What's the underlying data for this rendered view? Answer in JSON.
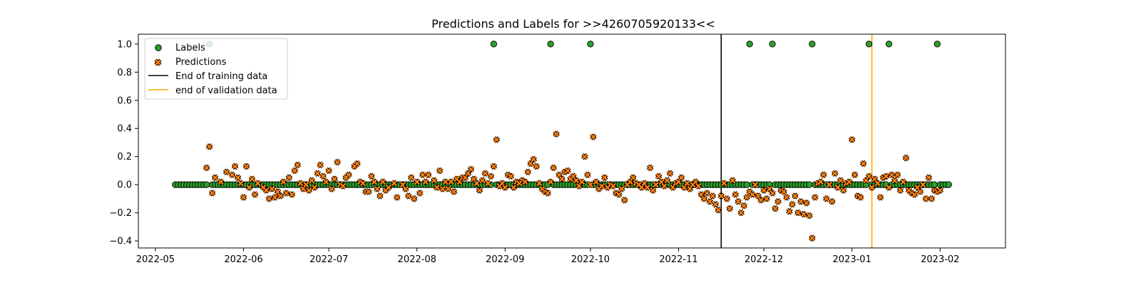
{
  "chart_data": {
    "type": "scatter",
    "title": "Predictions and Labels for >>4260705920133<<",
    "xlabel": "",
    "ylabel": "",
    "x_axis": "date",
    "xlim": [
      "2022-04-25",
      "2023-02-24"
    ],
    "ylim": [
      -0.45,
      1.07
    ],
    "yticks": [
      -0.4,
      -0.2,
      0.0,
      0.2,
      0.4,
      0.6,
      0.8,
      1.0
    ],
    "ytick_labels": [
      "−0.4",
      "−0.2",
      "0.0",
      "0.2",
      "0.4",
      "0.6",
      "0.8",
      "1.0"
    ],
    "xticks": [
      "2022-05-01",
      "2022-06-01",
      "2022-07-01",
      "2022-08-01",
      "2022-09-01",
      "2022-10-01",
      "2022-11-01",
      "2022-12-01",
      "2023-01-01",
      "2023-02-01"
    ],
    "xtick_labels": [
      "2022-05",
      "2022-06",
      "2022-07",
      "2022-08",
      "2022-09",
      "2022-10",
      "2022-11",
      "2022-12",
      "2023-01",
      "2023-02"
    ],
    "grid": false,
    "legend_position": "upper-left",
    "legend": [
      {
        "label": "Labels",
        "kind": "circle-marker",
        "color": "#2ca02c"
      },
      {
        "label": "Predictions",
        "kind": "x-marker",
        "color": "#ff7f0e"
      },
      {
        "label": "End of training data",
        "kind": "line",
        "color": "#000000"
      },
      {
        "label": "end of validation data",
        "kind": "line",
        "color": "#ffa500"
      }
    ],
    "colors": {
      "labels": "#2ca02c",
      "predictions": "#ff7f0e",
      "training_line": "#000000",
      "validation_line": "#ffa500"
    },
    "label_range": {
      "start": "2022-05-08",
      "end": "2023-02-04"
    },
    "label_positive_dates": [
      "2022-05-20",
      "2022-08-28",
      "2022-09-17",
      "2022-10-01",
      "2022-11-26",
      "2022-12-04",
      "2022-12-18",
      "2023-01-07",
      "2023-01-14",
      "2023-01-31"
    ],
    "vlines": [
      {
        "name": "End of training data",
        "x": "2022-11-16",
        "color": "#000000"
      },
      {
        "name": "end of validation data",
        "x": "2023-01-08",
        "color": "#ffa500"
      }
    ],
    "series": [
      {
        "name": "Labels",
        "kind": "scatter-circle"
      },
      {
        "name": "Predictions",
        "kind": "scatter-x",
        "points": [
          [
            "2022-05-19",
            0.12
          ],
          [
            "2022-05-20",
            0.27
          ],
          [
            "2022-05-21",
            -0.06
          ],
          [
            "2022-05-22",
            0.05
          ],
          [
            "2022-05-24",
            0.02
          ],
          [
            "2022-05-26",
            0.09
          ],
          [
            "2022-05-28",
            0.07
          ],
          [
            "2022-05-29",
            0.13
          ],
          [
            "2022-05-30",
            0.05
          ],
          [
            "2022-05-31",
            0.01
          ],
          [
            "2022-06-01",
            -0.09
          ],
          [
            "2022-06-02",
            0.13
          ],
          [
            "2022-06-03",
            -0.02
          ],
          [
            "2022-06-04",
            0.04
          ],
          [
            "2022-06-05",
            -0.07
          ],
          [
            "2022-06-06",
            0.01
          ],
          [
            "2022-06-08",
            -0.02
          ],
          [
            "2022-06-09",
            -0.04
          ],
          [
            "2022-06-10",
            -0.1
          ],
          [
            "2022-06-11",
            -0.03
          ],
          [
            "2022-06-12",
            -0.09
          ],
          [
            "2022-06-13",
            -0.05
          ],
          [
            "2022-06-14",
            -0.08
          ],
          [
            "2022-06-15",
            0.02
          ],
          [
            "2022-06-16",
            -0.06
          ],
          [
            "2022-06-17",
            0.05
          ],
          [
            "2022-06-18",
            -0.07
          ],
          [
            "2022-06-19",
            0.1
          ],
          [
            "2022-06-20",
            0.14
          ],
          [
            "2022-06-21",
            0.01
          ],
          [
            "2022-06-22",
            -0.03
          ],
          [
            "2022-06-23",
            0.0
          ],
          [
            "2022-06-24",
            -0.04
          ],
          [
            "2022-06-25",
            0.03
          ],
          [
            "2022-06-26",
            -0.02
          ],
          [
            "2022-06-27",
            0.08
          ],
          [
            "2022-06-28",
            0.14
          ],
          [
            "2022-06-29",
            0.06
          ],
          [
            "2022-06-30",
            0.02
          ],
          [
            "2022-07-01",
            0.1
          ],
          [
            "2022-07-02",
            -0.03
          ],
          [
            "2022-07-03",
            0.04
          ],
          [
            "2022-07-04",
            0.16
          ],
          [
            "2022-07-05",
            0.0
          ],
          [
            "2022-07-06",
            -0.01
          ],
          [
            "2022-07-07",
            0.05
          ],
          [
            "2022-07-08",
            0.07
          ],
          [
            "2022-07-10",
            0.13
          ],
          [
            "2022-07-11",
            0.15
          ],
          [
            "2022-07-12",
            0.02
          ],
          [
            "2022-07-13",
            0.01
          ],
          [
            "2022-07-14",
            -0.05
          ],
          [
            "2022-07-15",
            -0.05
          ],
          [
            "2022-07-16",
            0.06
          ],
          [
            "2022-07-17",
            0.02
          ],
          [
            "2022-07-18",
            -0.03
          ],
          [
            "2022-07-19",
            -0.08
          ],
          [
            "2022-07-20",
            0.02
          ],
          [
            "2022-07-21",
            -0.04
          ],
          [
            "2022-07-22",
            -0.02
          ],
          [
            "2022-07-24",
            0.01
          ],
          [
            "2022-07-25",
            -0.09
          ],
          [
            "2022-07-27",
            0.0
          ],
          [
            "2022-07-28",
            -0.03
          ],
          [
            "2022-07-29",
            -0.08
          ],
          [
            "2022-07-30",
            0.05
          ],
          [
            "2022-07-31",
            -0.1
          ],
          [
            "2022-08-01",
            0.02
          ],
          [
            "2022-08-02",
            -0.06
          ],
          [
            "2022-08-03",
            0.07
          ],
          [
            "2022-08-04",
            0.02
          ],
          [
            "2022-08-05",
            0.07
          ],
          [
            "2022-08-07",
            0.03
          ],
          [
            "2022-08-08",
            -0.02
          ],
          [
            "2022-08-09",
            0.1
          ],
          [
            "2022-08-10",
            -0.03
          ],
          [
            "2022-08-11",
            0.02
          ],
          [
            "2022-08-12",
            -0.03
          ],
          [
            "2022-08-13",
            0.02
          ],
          [
            "2022-08-14",
            -0.05
          ],
          [
            "2022-08-15",
            0.04
          ],
          [
            "2022-08-16",
            0.02
          ],
          [
            "2022-08-17",
            0.05
          ],
          [
            "2022-08-18",
            0.05
          ],
          [
            "2022-08-19",
            0.08
          ],
          [
            "2022-08-20",
            0.11
          ],
          [
            "2022-08-21",
            0.04
          ],
          [
            "2022-08-22",
            0.01
          ],
          [
            "2022-08-23",
            -0.04
          ],
          [
            "2022-08-24",
            0.03
          ],
          [
            "2022-08-25",
            0.08
          ],
          [
            "2022-08-26",
            0.01
          ],
          [
            "2022-08-27",
            0.06
          ],
          [
            "2022-08-28",
            0.13
          ],
          [
            "2022-08-29",
            0.32
          ],
          [
            "2022-08-30",
            -0.01
          ],
          [
            "2022-08-31",
            0.01
          ],
          [
            "2022-09-01",
            -0.02
          ],
          [
            "2022-09-02",
            0.07
          ],
          [
            "2022-09-03",
            0.06
          ],
          [
            "2022-09-04",
            -0.02
          ],
          [
            "2022-09-05",
            0.02
          ],
          [
            "2022-09-06",
            0.01
          ],
          [
            "2022-09-07",
            0.03
          ],
          [
            "2022-09-08",
            0.02
          ],
          [
            "2022-09-09",
            0.09
          ],
          [
            "2022-09-10",
            0.15
          ],
          [
            "2022-09-11",
            0.18
          ],
          [
            "2022-09-12",
            0.13
          ],
          [
            "2022-09-13",
            0.01
          ],
          [
            "2022-09-14",
            -0.03
          ],
          [
            "2022-09-15",
            -0.05
          ],
          [
            "2022-09-16",
            -0.06
          ],
          [
            "2022-09-17",
            0.02
          ],
          [
            "2022-09-18",
            0.12
          ],
          [
            "2022-09-19",
            0.36
          ],
          [
            "2022-09-20",
            0.07
          ],
          [
            "2022-09-21",
            0.04
          ],
          [
            "2022-09-22",
            0.09
          ],
          [
            "2022-09-23",
            0.1
          ],
          [
            "2022-09-24",
            0.04
          ],
          [
            "2022-09-25",
            0.06
          ],
          [
            "2022-09-26",
            0.03
          ],
          [
            "2022-09-27",
            -0.01
          ],
          [
            "2022-09-28",
            0.02
          ],
          [
            "2022-09-29",
            0.2
          ],
          [
            "2022-09-30",
            0.07
          ],
          [
            "2022-10-01",
            0.0
          ],
          [
            "2022-10-02",
            0.34
          ],
          [
            "2022-10-03",
            0.02
          ],
          [
            "2022-10-04",
            -0.03
          ],
          [
            "2022-10-05",
            -0.01
          ],
          [
            "2022-10-06",
            0.05
          ],
          [
            "2022-10-07",
            -0.02
          ],
          [
            "2022-10-08",
            0.0
          ],
          [
            "2022-10-09",
            -0.01
          ],
          [
            "2022-10-10",
            -0.06
          ],
          [
            "2022-10-11",
            -0.07
          ],
          [
            "2022-10-12",
            -0.03
          ],
          [
            "2022-10-13",
            -0.11
          ],
          [
            "2022-10-14",
            0.0
          ],
          [
            "2022-10-15",
            0.02
          ],
          [
            "2022-10-16",
            0.05
          ],
          [
            "2022-10-17",
            0.01
          ],
          [
            "2022-10-18",
            0.0
          ],
          [
            "2022-10-19",
            -0.02
          ],
          [
            "2022-10-20",
            0.01
          ],
          [
            "2022-10-21",
            -0.02
          ],
          [
            "2022-10-22",
            0.12
          ],
          [
            "2022-10-23",
            -0.04
          ],
          [
            "2022-10-24",
            0.0
          ],
          [
            "2022-10-25",
            0.06
          ],
          [
            "2022-10-26",
            0.02
          ],
          [
            "2022-10-27",
            -0.01
          ],
          [
            "2022-10-28",
            0.03
          ],
          [
            "2022-10-29",
            0.08
          ],
          [
            "2022-10-30",
            -0.02
          ],
          [
            "2022-10-31",
            0.01
          ],
          [
            "2022-11-01",
            0.02
          ],
          [
            "2022-11-02",
            0.05
          ],
          [
            "2022-11-03",
            -0.02
          ],
          [
            "2022-11-04",
            0.01
          ],
          [
            "2022-11-05",
            -0.03
          ],
          [
            "2022-11-06",
            0.0
          ],
          [
            "2022-11-07",
            0.02
          ],
          [
            "2022-11-08",
            -0.01
          ],
          [
            "2022-11-09",
            -0.07
          ],
          [
            "2022-11-10",
            -0.1
          ],
          [
            "2022-11-11",
            -0.06
          ],
          [
            "2022-11-12",
            -0.12
          ],
          [
            "2022-11-13",
            -0.08
          ],
          [
            "2022-11-14",
            -0.14
          ],
          [
            "2022-11-15",
            -0.18
          ],
          [
            "2022-11-16",
            -0.08
          ],
          [
            "2022-11-17",
            0.01
          ],
          [
            "2022-11-18",
            -0.1
          ],
          [
            "2022-11-19",
            -0.17
          ],
          [
            "2022-11-20",
            0.03
          ],
          [
            "2022-11-21",
            -0.07
          ],
          [
            "2022-11-22",
            -0.12
          ],
          [
            "2022-11-23",
            -0.2
          ],
          [
            "2022-11-24",
            -0.15
          ],
          [
            "2022-11-25",
            -0.09
          ],
          [
            "2022-11-26",
            -0.05
          ],
          [
            "2022-11-27",
            -0.07
          ],
          [
            "2022-11-28",
            0.0
          ],
          [
            "2022-11-29",
            -0.08
          ],
          [
            "2022-11-30",
            -0.11
          ],
          [
            "2022-12-01",
            -0.04
          ],
          [
            "2022-12-02",
            -0.1
          ],
          [
            "2022-12-03",
            -0.03
          ],
          [
            "2022-12-04",
            -0.06
          ],
          [
            "2022-12-05",
            -0.17
          ],
          [
            "2022-12-06",
            -0.12
          ],
          [
            "2022-12-07",
            -0.04
          ],
          [
            "2022-12-08",
            -0.05
          ],
          [
            "2022-12-09",
            -0.09
          ],
          [
            "2022-12-10",
            -0.19
          ],
          [
            "2022-12-11",
            -0.14
          ],
          [
            "2022-12-12",
            -0.08
          ],
          [
            "2022-12-13",
            -0.2
          ],
          [
            "2022-12-14",
            -0.12
          ],
          [
            "2022-12-15",
            -0.21
          ],
          [
            "2022-12-16",
            -0.13
          ],
          [
            "2022-12-17",
            -0.22
          ],
          [
            "2022-12-18",
            -0.38
          ],
          [
            "2022-12-19",
            -0.09
          ],
          [
            "2022-12-20",
            0.01
          ],
          [
            "2022-12-21",
            0.02
          ],
          [
            "2022-12-22",
            0.07
          ],
          [
            "2022-12-23",
            -0.1
          ],
          [
            "2022-12-24",
            0.0
          ],
          [
            "2022-12-25",
            -0.12
          ],
          [
            "2022-12-26",
            0.08
          ],
          [
            "2022-12-27",
            -0.02
          ],
          [
            "2022-12-28",
            0.03
          ],
          [
            "2022-12-29",
            -0.04
          ],
          [
            "2022-12-30",
            0.01
          ],
          [
            "2022-12-31",
            0.02
          ],
          [
            "2023-01-01",
            0.32
          ],
          [
            "2023-01-02",
            0.07
          ],
          [
            "2023-01-03",
            -0.08
          ],
          [
            "2023-01-04",
            -0.09
          ],
          [
            "2023-01-05",
            0.15
          ],
          [
            "2023-01-06",
            0.03
          ],
          [
            "2023-01-07",
            0.06
          ],
          [
            "2023-01-08",
            -0.02
          ],
          [
            "2023-01-09",
            0.04
          ],
          [
            "2023-01-10",
            0.01
          ],
          [
            "2023-01-11",
            -0.09
          ],
          [
            "2023-01-12",
            0.05
          ],
          [
            "2023-01-13",
            0.06
          ],
          [
            "2023-01-14",
            -0.02
          ],
          [
            "2023-01-15",
            0.07
          ],
          [
            "2023-01-16",
            0.03
          ],
          [
            "2023-01-17",
            0.07
          ],
          [
            "2023-01-18",
            -0.04
          ],
          [
            "2023-01-19",
            0.02
          ],
          [
            "2023-01-20",
            0.19
          ],
          [
            "2023-01-21",
            -0.04
          ],
          [
            "2023-01-22",
            -0.06
          ],
          [
            "2023-01-23",
            -0.07
          ],
          [
            "2023-01-24",
            -0.02
          ],
          [
            "2023-01-25",
            -0.05
          ],
          [
            "2023-01-26",
            0.0
          ],
          [
            "2023-01-27",
            -0.1
          ],
          [
            "2023-01-28",
            0.05
          ],
          [
            "2023-01-29",
            -0.1
          ],
          [
            "2023-01-30",
            -0.04
          ],
          [
            "2023-01-31",
            -0.05
          ],
          [
            "2023-02-01",
            -0.04
          ]
        ]
      }
    ]
  }
}
